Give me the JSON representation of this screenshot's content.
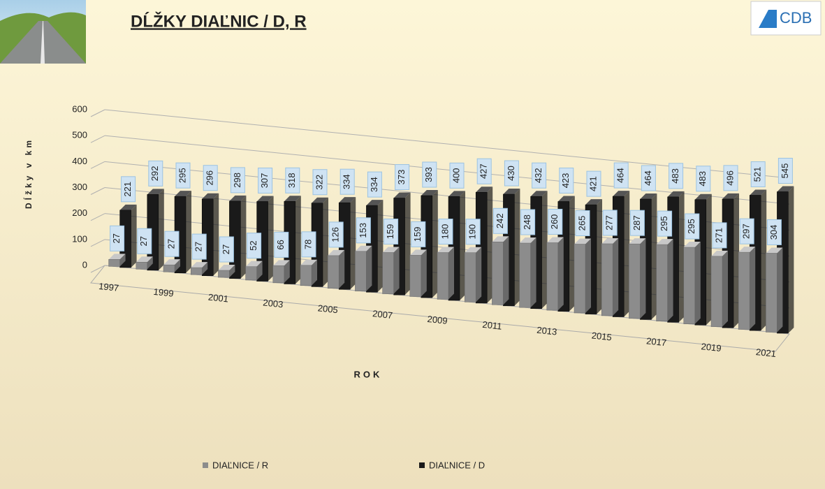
{
  "chart_data": {
    "type": "bar3d",
    "title": "DĹŽKY DIAĽNIC / D, R",
    "logo": "CDB",
    "ylabel": "Dĺžky v km",
    "xlabel": "ROK",
    "categories": [
      "1997",
      null,
      "1999",
      null,
      "2001",
      null,
      "2003",
      null,
      "2005",
      null,
      "2007",
      null,
      "2009",
      null,
      "2011",
      null,
      "2013",
      null,
      "2015",
      null,
      "2017",
      null,
      "2019",
      null,
      "2021"
    ],
    "series": [
      {
        "name": "DIAĽNICE / R",
        "color": "#8c8c8c",
        "values": [
          27,
          27,
          27,
          27,
          27,
          52,
          66,
          78,
          126,
          153,
          159,
          159,
          180,
          190,
          242,
          248,
          260,
          265,
          277,
          287,
          295,
          295,
          271,
          297,
          304
        ]
      },
      {
        "name": "DIAĽNICE / D",
        "color": "#1a1a1a",
        "values": [
          221,
          292,
          295,
          296,
          298,
          307,
          318,
          322,
          334,
          334,
          373,
          393,
          400,
          427,
          430,
          432,
          423,
          421,
          464,
          464,
          483,
          483,
          496,
          521,
          545
        ]
      }
    ],
    "ylim": [
      0,
      600
    ],
    "yticks": [
      0,
      100,
      200,
      300,
      400,
      500,
      600
    ],
    "grid": true,
    "legend": "bottom"
  }
}
